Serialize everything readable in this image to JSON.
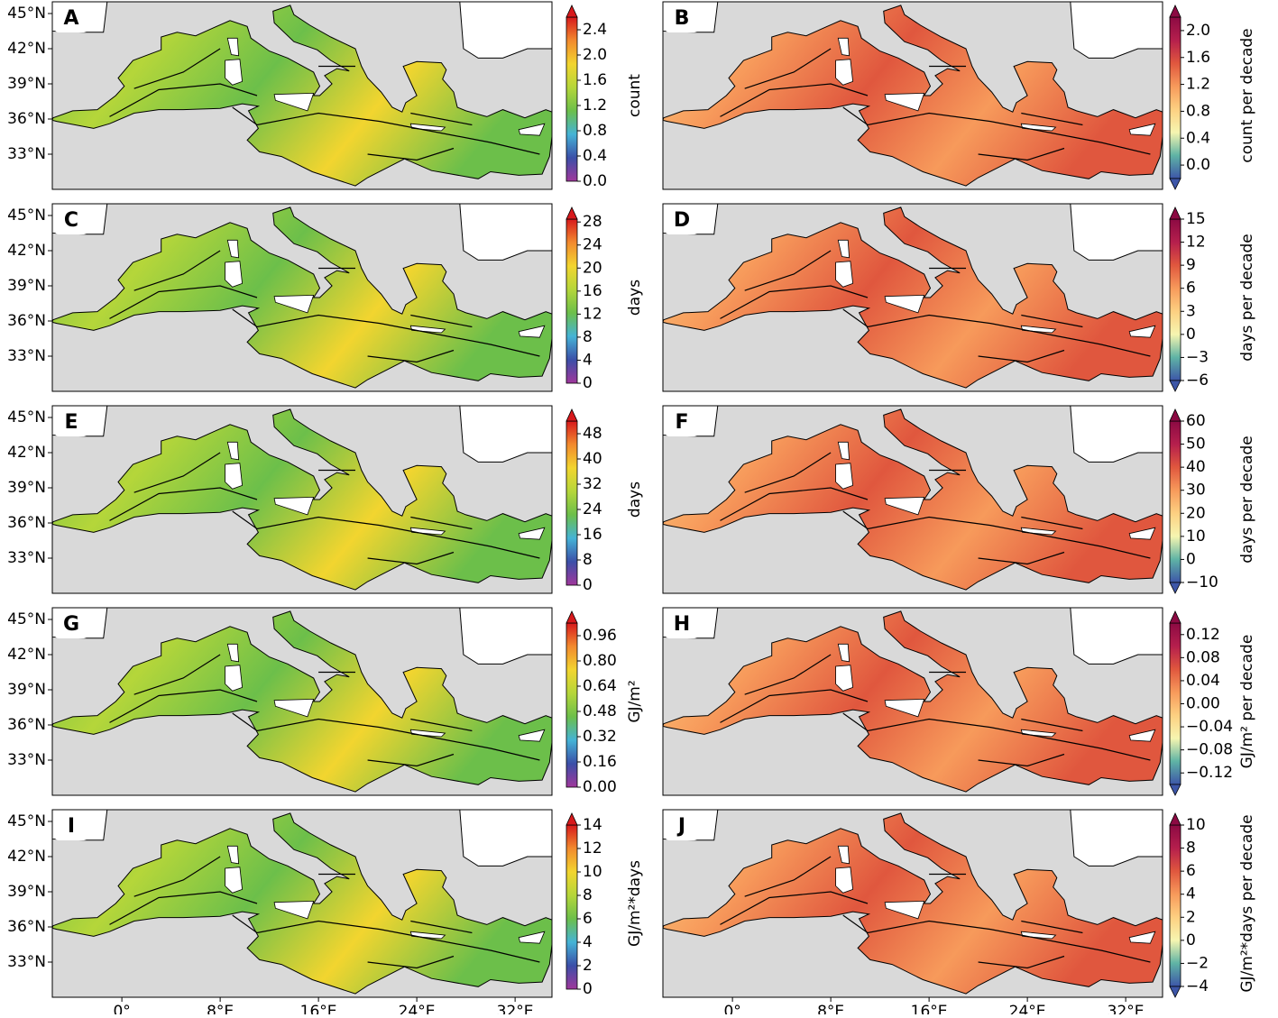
{
  "map_extent": {
    "lon": [
      -5.66,
      35.0
    ],
    "lat": [
      30,
      46
    ]
  },
  "latitude_ticks": [
    {
      "value": 45,
      "label": "45°N"
    },
    {
      "value": 42,
      "label": "42°N"
    },
    {
      "value": 39,
      "label": "39°N"
    },
    {
      "value": 36,
      "label": "36°N"
    },
    {
      "value": 33,
      "label": "33°N"
    }
  ],
  "longitude_ticks": [
    {
      "value": 0,
      "label": "0°"
    },
    {
      "value": 8,
      "label": "8°E"
    },
    {
      "value": 16,
      "label": "16°E"
    },
    {
      "value": 24,
      "label": "24°E"
    },
    {
      "value": 32,
      "label": "32°E"
    }
  ],
  "colormaps": {
    "sequential": [
      "#a0379b",
      "#3b4fa8",
      "#45b3d6",
      "#6cbf4a",
      "#b5d63a",
      "#f2d52f",
      "#f28a2e",
      "#d7191c"
    ],
    "diverging": [
      "#3d56a8",
      "#5fb3a5",
      "#f6f5b0",
      "#fdd081",
      "#f79a5b",
      "#e0573e",
      "#b51f4d",
      "#8c0a43"
    ]
  },
  "panels": [
    {
      "letter": "A",
      "colormap": "sequential",
      "extend": "max",
      "colorbar": {
        "label": "count",
        "range": [
          0,
          2.6
        ],
        "ticks": [
          {
            "value": 0,
            "label": "0.0"
          },
          {
            "value": 0.4,
            "label": "0.4"
          },
          {
            "value": 0.8,
            "label": "0.8"
          },
          {
            "value": 1.2,
            "label": "1.2"
          },
          {
            "value": 1.6,
            "label": "1.6"
          },
          {
            "value": 2.0,
            "label": "2.0"
          },
          {
            "value": 2.4,
            "label": "2.4"
          }
        ]
      }
    },
    {
      "letter": "B",
      "colormap": "diverging",
      "extend": "both",
      "colorbar": {
        "label": "count per decade",
        "range": [
          -0.2,
          2.2
        ],
        "ticks": [
          {
            "value": 0,
            "label": "0.0"
          },
          {
            "value": 0.4,
            "label": "0.4"
          },
          {
            "value": 0.8,
            "label": "0.8"
          },
          {
            "value": 1.2,
            "label": "1.2"
          },
          {
            "value": 1.6,
            "label": "1.6"
          },
          {
            "value": 2.0,
            "label": "2.0"
          }
        ]
      }
    },
    {
      "letter": "C",
      "colormap": "sequential",
      "extend": "max",
      "colorbar": {
        "label": "days",
        "range": [
          0,
          28.5
        ],
        "ticks": [
          {
            "value": 0,
            "label": "0"
          },
          {
            "value": 4,
            "label": "4"
          },
          {
            "value": 8,
            "label": "8"
          },
          {
            "value": 12,
            "label": "12"
          },
          {
            "value": 16,
            "label": "16"
          },
          {
            "value": 20,
            "label": "20"
          },
          {
            "value": 24,
            "label": "24"
          },
          {
            "value": 28,
            "label": "28"
          }
        ]
      }
    },
    {
      "letter": "D",
      "colormap": "diverging",
      "extend": "both",
      "colorbar": {
        "label": "days per decade",
        "range": [
          -6,
          15
        ],
        "ticks": [
          {
            "value": -6,
            "label": "−6"
          },
          {
            "value": -3,
            "label": "−3"
          },
          {
            "value": 0,
            "label": "0"
          },
          {
            "value": 3,
            "label": "3"
          },
          {
            "value": 6,
            "label": "6"
          },
          {
            "value": 9,
            "label": "9"
          },
          {
            "value": 12,
            "label": "12"
          },
          {
            "value": 15,
            "label": "15"
          }
        ]
      }
    },
    {
      "letter": "E",
      "colormap": "sequential",
      "extend": "max",
      "colorbar": {
        "label": "days",
        "range": [
          0,
          52
        ],
        "ticks": [
          {
            "value": 0,
            "label": "0"
          },
          {
            "value": 8,
            "label": "8"
          },
          {
            "value": 16,
            "label": "16"
          },
          {
            "value": 24,
            "label": "24"
          },
          {
            "value": 32,
            "label": "32"
          },
          {
            "value": 40,
            "label": "40"
          },
          {
            "value": 48,
            "label": "48"
          }
        ]
      }
    },
    {
      "letter": "F",
      "colormap": "diverging",
      "extend": "both",
      "colorbar": {
        "label": "days per decade",
        "range": [
          -10,
          60
        ],
        "ticks": [
          {
            "value": -10,
            "label": "−10"
          },
          {
            "value": 0,
            "label": "0"
          },
          {
            "value": 10,
            "label": "10"
          },
          {
            "value": 20,
            "label": "20"
          },
          {
            "value": 30,
            "label": "30"
          },
          {
            "value": 40,
            "label": "40"
          },
          {
            "value": 50,
            "label": "50"
          },
          {
            "value": 60,
            "label": "60"
          }
        ]
      }
    },
    {
      "letter": "G",
      "colormap": "sequential",
      "extend": "max",
      "colorbar": {
        "label": "GJ/m²",
        "range": [
          0,
          1.04
        ],
        "ticks": [
          {
            "value": 0,
            "label": "0.00"
          },
          {
            "value": 0.16,
            "label": "0.16"
          },
          {
            "value": 0.32,
            "label": "0.32"
          },
          {
            "value": 0.48,
            "label": "0.48"
          },
          {
            "value": 0.64,
            "label": "0.64"
          },
          {
            "value": 0.8,
            "label": "0.80"
          },
          {
            "value": 0.96,
            "label": "0.96"
          }
        ]
      }
    },
    {
      "letter": "H",
      "colormap": "diverging",
      "extend": "both",
      "colorbar": {
        "label": "GJ/m² per decade",
        "range": [
          -0.14,
          0.14
        ],
        "ticks": [
          {
            "value": -0.12,
            "label": "−0.12"
          },
          {
            "value": -0.08,
            "label": "−0.08"
          },
          {
            "value": -0.04,
            "label": "−0.04"
          },
          {
            "value": 0,
            "label": "0.00"
          },
          {
            "value": 0.04,
            "label": "0.04"
          },
          {
            "value": 0.08,
            "label": "0.08"
          },
          {
            "value": 0.12,
            "label": "0.12"
          }
        ]
      }
    },
    {
      "letter": "I",
      "colormap": "sequential",
      "extend": "max",
      "colorbar": {
        "label": "GJ/m²*days",
        "range": [
          0,
          14
        ],
        "ticks": [
          {
            "value": 0,
            "label": "0"
          },
          {
            "value": 2,
            "label": "2"
          },
          {
            "value": 4,
            "label": "4"
          },
          {
            "value": 6,
            "label": "6"
          },
          {
            "value": 8,
            "label": "8"
          },
          {
            "value": 10,
            "label": "10"
          },
          {
            "value": 12,
            "label": "12"
          },
          {
            "value": 14,
            "label": "14"
          }
        ]
      }
    },
    {
      "letter": "J",
      "colormap": "diverging",
      "extend": "both",
      "colorbar": {
        "label": "GJ/m²*days per decade",
        "range": [
          -4,
          10
        ],
        "ticks": [
          {
            "value": -4,
            "label": "−4"
          },
          {
            "value": -2,
            "label": "−2"
          },
          {
            "value": 0,
            "label": "0"
          },
          {
            "value": 2,
            "label": "2"
          },
          {
            "value": 4,
            "label": "4"
          },
          {
            "value": 6,
            "label": "6"
          },
          {
            "value": 8,
            "label": "8"
          },
          {
            "value": 10,
            "label": "10"
          }
        ]
      }
    }
  ]
}
